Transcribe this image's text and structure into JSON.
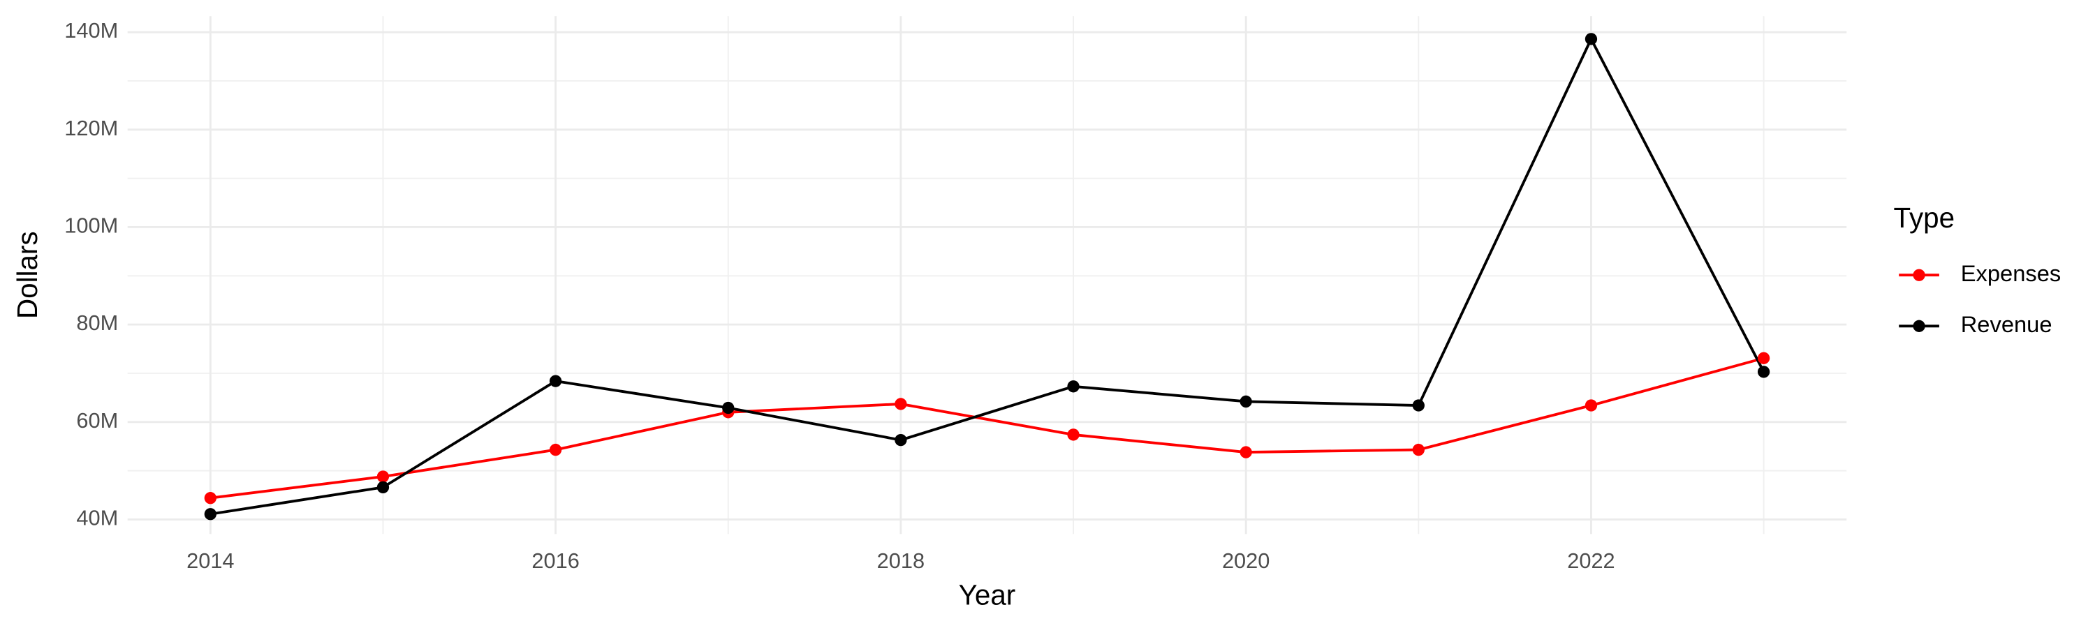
{
  "chart_data": {
    "type": "line",
    "x_label": "Year",
    "y_label": "Dollars",
    "legend_title": "Type",
    "legend": "right",
    "grid": true,
    "x": [
      2014,
      2015,
      2016,
      2017,
      2018,
      2019,
      2020,
      2021,
      2022,
      2023
    ],
    "series": [
      {
        "name": "Expenses",
        "color": "#ff0000",
        "values": [
          44400000,
          48800000,
          54300000,
          62000000,
          63700000,
          57400000,
          53800000,
          54300000,
          63400000,
          73100000
        ]
      },
      {
        "name": "Revenue",
        "color": "#000000",
        "values": [
          41100000,
          46600000,
          68400000,
          62900000,
          56300000,
          67300000,
          64200000,
          63400000,
          138600000,
          70300000
        ]
      }
    ],
    "xlim": [
      2013.52,
      2023.48
    ],
    "xticks": [
      2014,
      2016,
      2018,
      2020,
      2022
    ],
    "ylim": [
      37000000,
      143300000
    ],
    "yticks": [
      {
        "value": 40000000,
        "label": "40M"
      },
      {
        "value": 60000000,
        "label": "60M"
      },
      {
        "value": 80000000,
        "label": "80M"
      },
      {
        "value": 100000000,
        "label": "100M"
      },
      {
        "value": 120000000,
        "label": "120M"
      },
      {
        "value": 140000000,
        "label": "140M"
      }
    ]
  }
}
